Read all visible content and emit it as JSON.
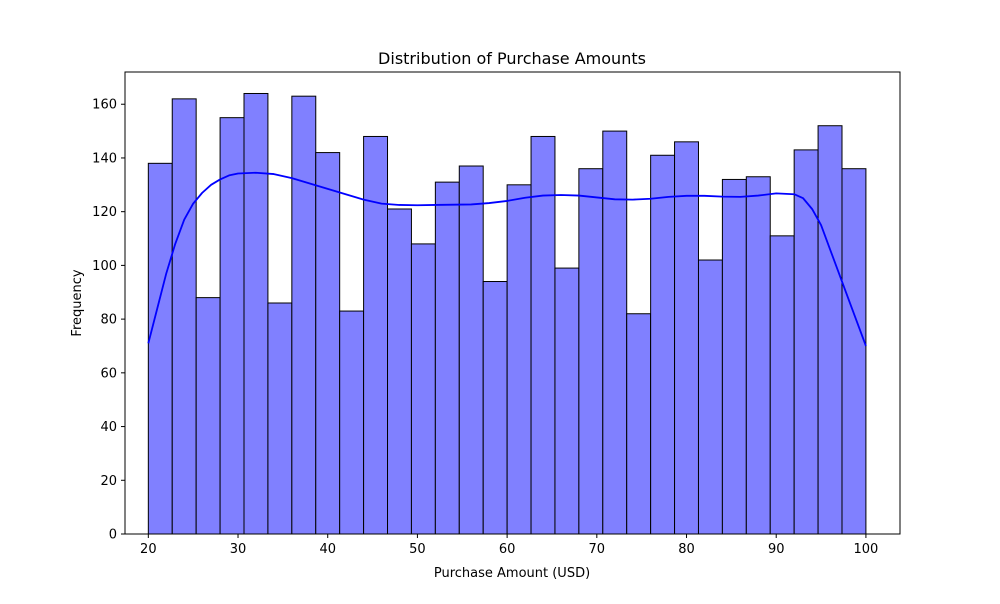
{
  "chart_data": {
    "type": "bar",
    "title": "Distribution of Purchase Amounts",
    "xlabel": "Purchase Amount (USD)",
    "ylabel": "Frequency",
    "xlim": [
      17.4,
      103.8
    ],
    "ylim": [
      0,
      172
    ],
    "xticks": [
      20,
      30,
      40,
      50,
      60,
      70,
      80,
      90,
      100
    ],
    "yticks": [
      0,
      20,
      40,
      60,
      80,
      100,
      120,
      140,
      160
    ],
    "grid": false,
    "bin_start": 20,
    "bin_end": 100,
    "bins": 30,
    "values": [
      138,
      162,
      88,
      155,
      164,
      86,
      163,
      142,
      83,
      148,
      121,
      108,
      131,
      137,
      94,
      130,
      148,
      99,
      136,
      150,
      82,
      141,
      146,
      102,
      132,
      133,
      111,
      143,
      152,
      136
    ],
    "kde": {
      "x": [
        20,
        21,
        22,
        23,
        24,
        25,
        26,
        27,
        28,
        29,
        30,
        32,
        34,
        36,
        38,
        40,
        42,
        44,
        46,
        48,
        50,
        52,
        54,
        56,
        58,
        60,
        62,
        64,
        66,
        68,
        70,
        72,
        74,
        76,
        78,
        80,
        82,
        84,
        86,
        88,
        90,
        92,
        93,
        94,
        95,
        96,
        97,
        98,
        99,
        100
      ],
      "y": [
        71,
        84,
        97,
        108,
        117,
        123,
        127,
        130,
        132,
        133.5,
        134.2,
        134.5,
        134,
        132.5,
        130.5,
        128.5,
        126.5,
        124.5,
        123,
        122.5,
        122.4,
        122.5,
        122.6,
        122.7,
        123.2,
        124,
        125.2,
        126,
        126.2,
        126,
        125.3,
        124.6,
        124.5,
        124.8,
        125.5,
        125.9,
        125.9,
        125.6,
        125.5,
        126,
        126.8,
        126.5,
        125,
        121,
        115,
        106,
        97,
        88,
        79,
        70
      ]
    },
    "colors": {
      "bar_fill": "#8080ff",
      "bar_edge": "#000000",
      "kde_line": "#0000ff"
    }
  }
}
